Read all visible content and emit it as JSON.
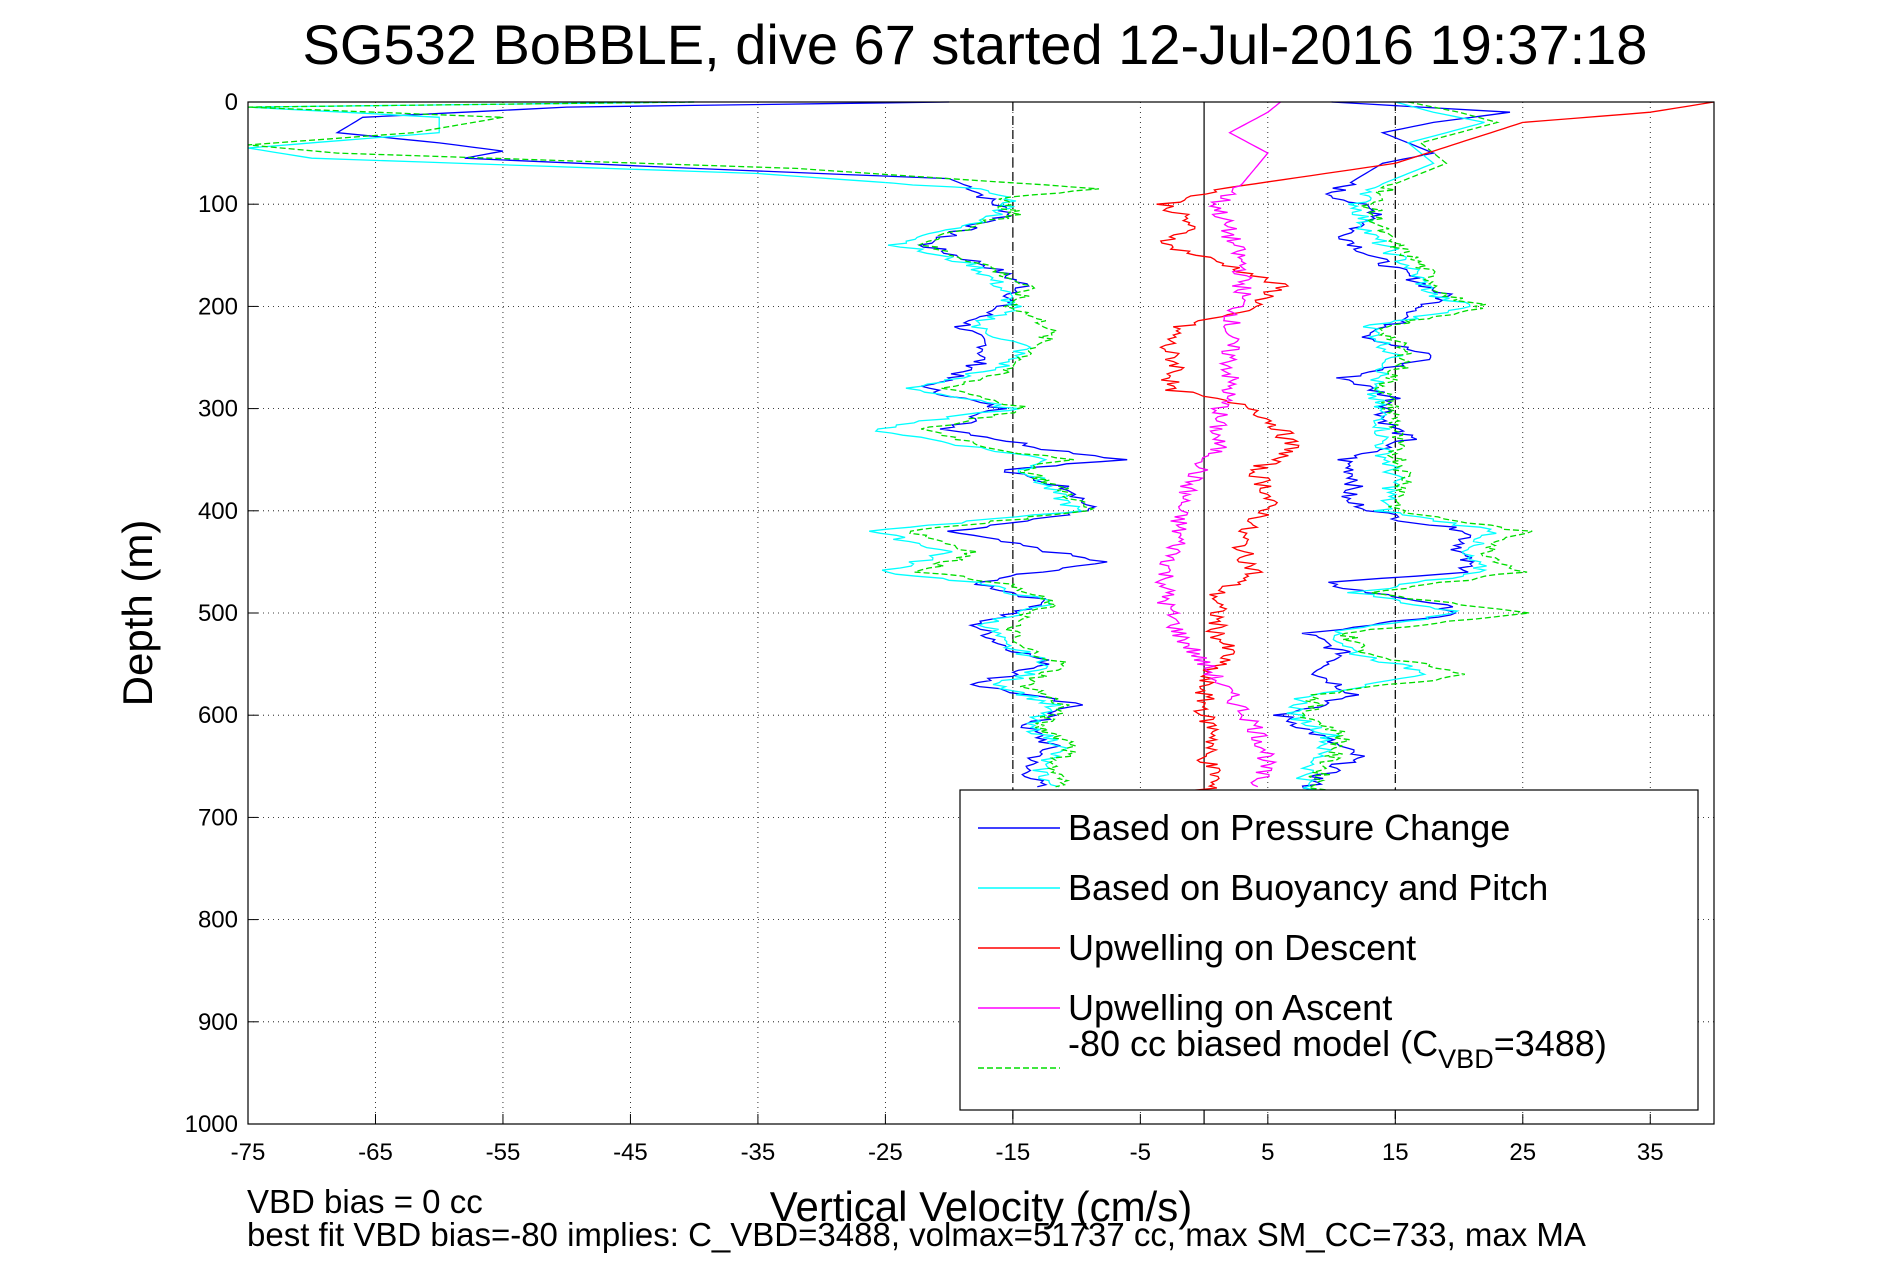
{
  "chart_data": {
    "type": "line",
    "title": "SG532 BoBBLE, dive 67 started 12-Jul-2016 19:37:18",
    "xlabel": "Vertical Velocity (cm/s)",
    "ylabel": "Depth (m)",
    "xlim": [
      -75,
      40
    ],
    "ylim": [
      0,
      1000
    ],
    "y_reversed": true,
    "xticks": [
      -75,
      -65,
      -55,
      -45,
      -35,
      -25,
      -15,
      -5,
      5,
      15,
      25,
      35
    ],
    "yticks": [
      0,
      100,
      200,
      300,
      400,
      500,
      600,
      700,
      800,
      900,
      1000
    ],
    "grid": true,
    "reference_lines": [
      {
        "x": 0,
        "style": "solid"
      },
      {
        "x": -15,
        "style": "dashed"
      },
      {
        "x": 15,
        "style": "dashed"
      }
    ],
    "legend_position": "bottom-right",
    "legend": [
      {
        "label": "Based on Pressure Change",
        "color": "#0000ff",
        "dash": false
      },
      {
        "label": "Based on Buoyancy and Pitch",
        "color": "#00ffff",
        "dash": false
      },
      {
        "label": "Upwelling on Descent",
        "color": "#ff0000",
        "dash": false
      },
      {
        "label": "Upwelling on Ascent",
        "color": "#ff00ff",
        "dash": false
      },
      {
        "label_prefix": "-80 cc biased model (C",
        "label_sub": "VBD",
        "label_suffix": "=3488)",
        "color": "#00dd00",
        "dash": true
      }
    ],
    "series": [
      {
        "color": "#0000ff",
        "depth": [
          0,
          5,
          15,
          30,
          40,
          48,
          55,
          65,
          75,
          85,
          95,
          110,
          125,
          140,
          160,
          180,
          200,
          220,
          240,
          260,
          280,
          300,
          320,
          340,
          350,
          360,
          380,
          400,
          420,
          440,
          450,
          470,
          490,
          510,
          530,
          550,
          570,
          590,
          610,
          630,
          650,
          670
        ],
        "velocity": [
          -20,
          -50,
          -66,
          -68,
          -60,
          -55,
          -58,
          -40,
          -20,
          -18,
          -17,
          -15,
          -19,
          -22,
          -17,
          -14,
          -16,
          -19,
          -17,
          -18,
          -22,
          -16,
          -20,
          -12,
          -6,
          -16,
          -10,
          -9,
          -20,
          -12,
          -8,
          -18,
          -12,
          -18,
          -16,
          -12,
          -18,
          -10,
          -14,
          -12,
          -14,
          -13
        ]
      },
      {
        "color": "#0000ff",
        "depth": [
          0,
          10,
          20,
          30,
          40,
          50,
          60,
          75,
          90,
          110,
          130,
          150,
          170,
          190,
          210,
          230,
          250,
          270,
          290,
          310,
          330,
          350,
          370,
          390,
          410,
          420,
          440,
          460,
          470,
          480,
          490,
          500,
          520,
          540,
          560,
          580,
          600,
          620,
          640,
          660,
          675
        ],
        "velocity": [
          10,
          24,
          18,
          14,
          16,
          18,
          14,
          12,
          10,
          14,
          11,
          13,
          16,
          19,
          16,
          13,
          18,
          11,
          15,
          14,
          16,
          11,
          12,
          11,
          16,
          21,
          20,
          21,
          9,
          13,
          18,
          20,
          8,
          11,
          9,
          12,
          6,
          9,
          12,
          9,
          8
        ]
      },
      {
        "color": "#00ffff",
        "depth": [
          0,
          5,
          15,
          30,
          45,
          55,
          70,
          85,
          95,
          110,
          125,
          140,
          160,
          180,
          200,
          220,
          240,
          260,
          280,
          300,
          320,
          340,
          350,
          360,
          380,
          400,
          420,
          440,
          460,
          470,
          490,
          510,
          530,
          550,
          570,
          590,
          610,
          630,
          650,
          670
        ],
        "velocity": [
          -40,
          -75,
          -60,
          -60,
          -75,
          -70,
          -35,
          -18,
          -15,
          -16,
          -20,
          -24,
          -18,
          -16,
          -15,
          -18,
          -14,
          -16,
          -23,
          -15,
          -26,
          -17,
          -12,
          -14,
          -12,
          -10,
          -26,
          -20,
          -25,
          -18,
          -12,
          -17,
          -16,
          -12,
          -16,
          -12,
          -14,
          -11,
          -13,
          -12
        ]
      },
      {
        "color": "#00ffff",
        "depth": [
          0,
          10,
          20,
          40,
          60,
          80,
          100,
          130,
          160,
          190,
          200,
          220,
          250,
          280,
          310,
          340,
          370,
          400,
          420,
          440,
          460,
          480,
          500,
          520,
          540,
          560,
          580,
          600,
          620,
          640,
          660,
          675
        ],
        "velocity": [
          15,
          18,
          22,
          16,
          18,
          14,
          12,
          13,
          16,
          18,
          21,
          13,
          15,
          13,
          14,
          14,
          15,
          14,
          23,
          20,
          22,
          12,
          20,
          10,
          12,
          18,
          8,
          7,
          10,
          9,
          8,
          8
        ]
      },
      {
        "color": "#00dd00",
        "dash": true,
        "depth": [
          0,
          5,
          15,
          30,
          42,
          50,
          65,
          85,
          95,
          110,
          125,
          140,
          160,
          180,
          200,
          220,
          240,
          260,
          280,
          300,
          320,
          340,
          350,
          360,
          380,
          400,
          420,
          440,
          460,
          470,
          490,
          510,
          530,
          550,
          570,
          590,
          610,
          630,
          650,
          670
        ],
        "velocity": [
          -40,
          -75,
          -55,
          -62,
          -75,
          -68,
          -32,
          -8,
          -16,
          -15,
          -19,
          -22,
          -17,
          -14,
          -15,
          -12,
          -13,
          -15,
          -20,
          -14,
          -22,
          -16,
          -11,
          -14,
          -11,
          -9,
          -23,
          -18,
          -22,
          -16,
          -12,
          -15,
          -15,
          -11,
          -14,
          -11,
          -13,
          -10,
          -12,
          -11
        ]
      },
      {
        "color": "#00dd00",
        "dash": true,
        "depth": [
          0,
          10,
          20,
          40,
          60,
          80,
          100,
          130,
          160,
          190,
          200,
          220,
          250,
          280,
          310,
          340,
          370,
          400,
          420,
          440,
          460,
          480,
          500,
          520,
          540,
          560,
          580,
          600,
          620,
          640,
          660,
          675
        ],
        "velocity": [
          16,
          20,
          23,
          17,
          19,
          15,
          13,
          14,
          17,
          19,
          22,
          14,
          16,
          14,
          15,
          15,
          16,
          15,
          25,
          22,
          25,
          13,
          25,
          11,
          13,
          21,
          9,
          8,
          11,
          10,
          9,
          9
        ]
      },
      {
        "color": "#ff0000",
        "depth": [
          0,
          10,
          20,
          40,
          60,
          80,
          90,
          100,
          120,
          140,
          160,
          180,
          200,
          220,
          240,
          260,
          280,
          300,
          320,
          340,
          360,
          380,
          400,
          420,
          440,
          460,
          480,
          500,
          520,
          540,
          560,
          580,
          600,
          620,
          640,
          660,
          675
        ],
        "velocity": [
          40,
          35,
          25,
          20,
          15,
          4,
          0,
          -3,
          -1,
          -3,
          2,
          6,
          4,
          -2,
          -3,
          -2,
          -3,
          4,
          6,
          7,
          4,
          5,
          5,
          3,
          3,
          4,
          1,
          1,
          1,
          2,
          0,
          0,
          0,
          1,
          0,
          1,
          0
        ]
      },
      {
        "color": "#ff00ff",
        "depth": [
          0,
          10,
          30,
          50,
          80,
          100,
          130,
          160,
          190,
          220,
          250,
          280,
          310,
          340,
          370,
          400,
          430,
          460,
          490,
          520,
          550,
          580,
          610,
          640,
          670
        ],
        "velocity": [
          6,
          5,
          2,
          5,
          3,
          1,
          2,
          3,
          3,
          2,
          2,
          2,
          1,
          1,
          -1,
          -2,
          -2,
          -3,
          -3,
          -2,
          0,
          2,
          4,
          5,
          4
        ]
      }
    ],
    "footer_lines": [
      "VBD bias = 0 cc",
      "best fit VBD bias=-80 implies: C_VBD=3488, volmax=51737 cc, max SM_CC=733, max MA"
    ]
  }
}
